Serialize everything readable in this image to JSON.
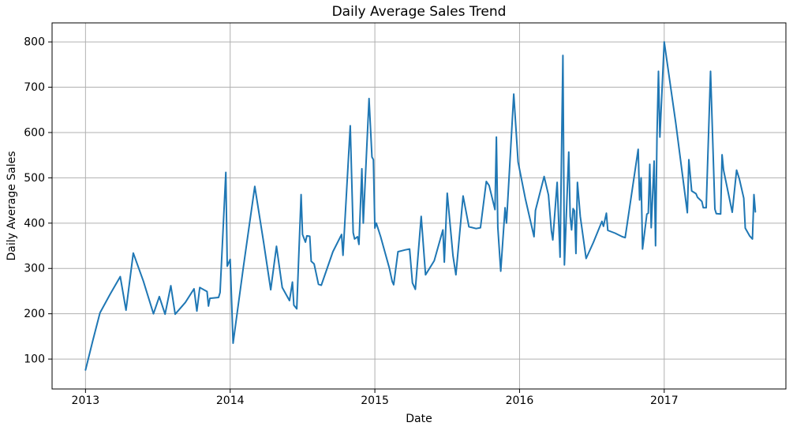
{
  "figure": {
    "title": "Daily Average Sales Trend",
    "xlabel": "Date",
    "ylabel": "Daily Average Sales"
  },
  "chart_data": {
    "type": "line",
    "title": "Daily Average Sales Trend",
    "xlabel": "Date",
    "ylabel": "Daily Average Sales",
    "x_unit": "decimal_year",
    "grid": true,
    "legend": "none",
    "line_color": "#1f77b4",
    "grid_color": "#b0b0b0",
    "spine_color": "#000000",
    "background_color": "#ffffff",
    "xlim": [
      2012.769,
      2017.841
    ],
    "ylim": [
      34,
      842
    ],
    "xticks": {
      "values": [
        2013,
        2014,
        2015,
        2016,
        2017
      ],
      "labels": [
        "2013",
        "2014",
        "2015",
        "2016",
        "2017"
      ]
    },
    "yticks": {
      "values": [
        100,
        200,
        300,
        400,
        500,
        600,
        700,
        800
      ],
      "labels": [
        "100",
        "200",
        "300",
        "400",
        "500",
        "600",
        "700",
        "800"
      ]
    },
    "series": [
      {
        "name": "Daily Average Sales",
        "points": [
          [
            2013.0,
            76
          ],
          [
            2013.05,
            140
          ],
          [
            2013.1,
            202
          ],
          [
            2013.17,
            243
          ],
          [
            2013.24,
            282
          ],
          [
            2013.28,
            208
          ],
          [
            2013.33,
            334
          ],
          [
            2013.4,
            272
          ],
          [
            2013.47,
            200
          ],
          [
            2013.51,
            238
          ],
          [
            2013.55,
            199
          ],
          [
            2013.59,
            262
          ],
          [
            2013.62,
            199
          ],
          [
            2013.69,
            225
          ],
          [
            2013.75,
            255
          ],
          [
            2013.77,
            206
          ],
          [
            2013.79,
            258
          ],
          [
            2013.84,
            249
          ],
          [
            2013.85,
            217
          ],
          [
            2013.86,
            234
          ],
          [
            2013.92,
            236
          ],
          [
            2013.93,
            247
          ],
          [
            2013.97,
            512
          ],
          [
            2013.98,
            305
          ],
          [
            2014.0,
            320
          ],
          [
            2014.02,
            135
          ],
          [
            2014.09,
            300
          ],
          [
            2014.17,
            481
          ],
          [
            2014.23,
            360
          ],
          [
            2014.28,
            253
          ],
          [
            2014.32,
            349
          ],
          [
            2014.36,
            258
          ],
          [
            2014.41,
            229
          ],
          [
            2014.43,
            270
          ],
          [
            2014.44,
            219
          ],
          [
            2014.46,
            211
          ],
          [
            2014.49,
            463
          ],
          [
            2014.5,
            375
          ],
          [
            2014.52,
            358
          ],
          [
            2014.53,
            372
          ],
          [
            2014.55,
            371
          ],
          [
            2014.56,
            316
          ],
          [
            2014.58,
            310
          ],
          [
            2014.61,
            265
          ],
          [
            2014.63,
            263
          ],
          [
            2014.71,
            337
          ],
          [
            2014.77,
            375
          ],
          [
            2014.78,
            329
          ],
          [
            2014.83,
            615
          ],
          [
            2014.85,
            379
          ],
          [
            2014.86,
            365
          ],
          [
            2014.88,
            370
          ],
          [
            2014.89,
            353
          ],
          [
            2014.91,
            520
          ],
          [
            2014.92,
            400
          ],
          [
            2014.96,
            675
          ],
          [
            2014.98,
            546
          ],
          [
            2014.99,
            540
          ],
          [
            2015.0,
            389
          ],
          [
            2015.01,
            400
          ],
          [
            2015.04,
            370
          ],
          [
            2015.1,
            301
          ],
          [
            2015.12,
            271
          ],
          [
            2015.13,
            264
          ],
          [
            2015.16,
            337
          ],
          [
            2015.21,
            341
          ],
          [
            2015.24,
            343
          ],
          [
            2015.26,
            268
          ],
          [
            2015.28,
            254
          ],
          [
            2015.32,
            415
          ],
          [
            2015.35,
            286
          ],
          [
            2015.41,
            317
          ],
          [
            2015.47,
            385
          ],
          [
            2015.48,
            314
          ],
          [
            2015.5,
            466
          ],
          [
            2015.54,
            328
          ],
          [
            2015.56,
            286
          ],
          [
            2015.6,
            426
          ],
          [
            2015.61,
            460
          ],
          [
            2015.63,
            426
          ],
          [
            2015.65,
            392
          ],
          [
            2015.7,
            388
          ],
          [
            2015.73,
            390
          ],
          [
            2015.77,
            492
          ],
          [
            2015.79,
            483
          ],
          [
            2015.83,
            430
          ],
          [
            2015.84,
            590
          ],
          [
            2015.85,
            391
          ],
          [
            2015.87,
            294
          ],
          [
            2015.9,
            434
          ],
          [
            2015.91,
            400
          ],
          [
            2015.96,
            685
          ],
          [
            2015.99,
            535
          ],
          [
            2016.04,
            454
          ],
          [
            2016.1,
            370
          ],
          [
            2016.11,
            428
          ],
          [
            2016.17,
            503
          ],
          [
            2016.2,
            462
          ],
          [
            2016.22,
            383
          ],
          [
            2016.23,
            363
          ],
          [
            2016.26,
            490
          ],
          [
            2016.28,
            325
          ],
          [
            2016.3,
            770
          ],
          [
            2016.31,
            308
          ],
          [
            2016.34,
            557
          ],
          [
            2016.35,
            415
          ],
          [
            2016.36,
            385
          ],
          [
            2016.37,
            432
          ],
          [
            2016.38,
            427
          ],
          [
            2016.39,
            333
          ],
          [
            2016.4,
            490
          ],
          [
            2016.42,
            415
          ],
          [
            2016.46,
            322
          ],
          [
            2016.51,
            357
          ],
          [
            2016.57,
            404
          ],
          [
            2016.58,
            393
          ],
          [
            2016.6,
            422
          ],
          [
            2016.61,
            384
          ],
          [
            2016.66,
            378
          ],
          [
            2016.71,
            370
          ],
          [
            2016.73,
            368
          ],
          [
            2016.82,
            563
          ],
          [
            2016.83,
            451
          ],
          [
            2016.84,
            500
          ],
          [
            2016.85,
            343
          ],
          [
            2016.88,
            420
          ],
          [
            2016.89,
            422
          ],
          [
            2016.9,
            530
          ],
          [
            2016.91,
            390
          ],
          [
            2016.93,
            537
          ],
          [
            2016.94,
            350
          ],
          [
            2016.95,
            591
          ],
          [
            2016.96,
            735
          ],
          [
            2016.97,
            590
          ],
          [
            2017.0,
            800
          ],
          [
            2017.08,
            620
          ],
          [
            2017.16,
            423
          ],
          [
            2017.17,
            540
          ],
          [
            2017.19,
            471
          ],
          [
            2017.22,
            465
          ],
          [
            2017.23,
            457
          ],
          [
            2017.26,
            448
          ],
          [
            2017.27,
            434
          ],
          [
            2017.29,
            434
          ],
          [
            2017.32,
            735
          ],
          [
            2017.35,
            431
          ],
          [
            2017.36,
            421
          ],
          [
            2017.39,
            420
          ],
          [
            2017.4,
            551
          ],
          [
            2017.41,
            517
          ],
          [
            2017.47,
            424
          ],
          [
            2017.5,
            517
          ],
          [
            2017.52,
            497
          ],
          [
            2017.55,
            455
          ],
          [
            2017.56,
            389
          ],
          [
            2017.59,
            372
          ],
          [
            2017.61,
            365
          ],
          [
            2017.62,
            463
          ],
          [
            2017.63,
            425
          ]
        ]
      }
    ]
  }
}
